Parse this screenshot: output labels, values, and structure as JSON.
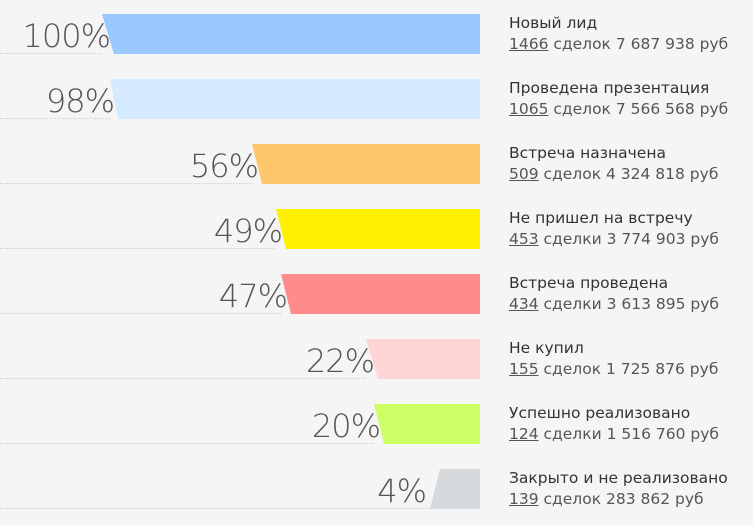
{
  "chart_data": {
    "type": "funnel",
    "stages": [
      {
        "name": "Новый лид",
        "percent": "100%",
        "value": 100,
        "count": "1466",
        "count_word": "сделок",
        "amount": "7 687 938 руб",
        "color": "#99c9ff"
      },
      {
        "name": "Проведена презентация",
        "percent": "98%",
        "value": 98,
        "count": "1065",
        "count_word": "сделок",
        "amount": "7 566 568 руб",
        "color": "#d6eaff"
      },
      {
        "name": "Встреча назначена",
        "percent": "56%",
        "value": 56,
        "count": "509",
        "count_word": "сделок",
        "amount": "4 324 818 руб",
        "color": "#ffc66e"
      },
      {
        "name": "Не пришел на встречу",
        "percent": "49%",
        "value": 49,
        "count": "453",
        "count_word": "сделки",
        "amount": "3 774 903 руб",
        "color": "#fff000"
      },
      {
        "name": "Встреча проведена",
        "percent": "47%",
        "value": 47,
        "count": "434",
        "count_word": "сделки",
        "amount": "3 613 895 руб",
        "color": "#ff8b8b"
      },
      {
        "name": "Не купил",
        "percent": "22%",
        "value": 22,
        "count": "155",
        "count_word": "сделок",
        "amount": "1 725 876 руб",
        "color": "#ffd5d5"
      },
      {
        "name": "Успешно реализовано",
        "percent": "20%",
        "value": 20,
        "count": "124",
        "count_word": "сделки",
        "amount": "1 516 760 руб",
        "color": "#ccff66"
      },
      {
        "name": "Закрыто и не реализовано",
        "percent": "4%",
        "value": 4,
        "count": "139",
        "count_word": "сделок",
        "amount": "283 862 руб",
        "color": "#d5d9dc"
      }
    ]
  }
}
